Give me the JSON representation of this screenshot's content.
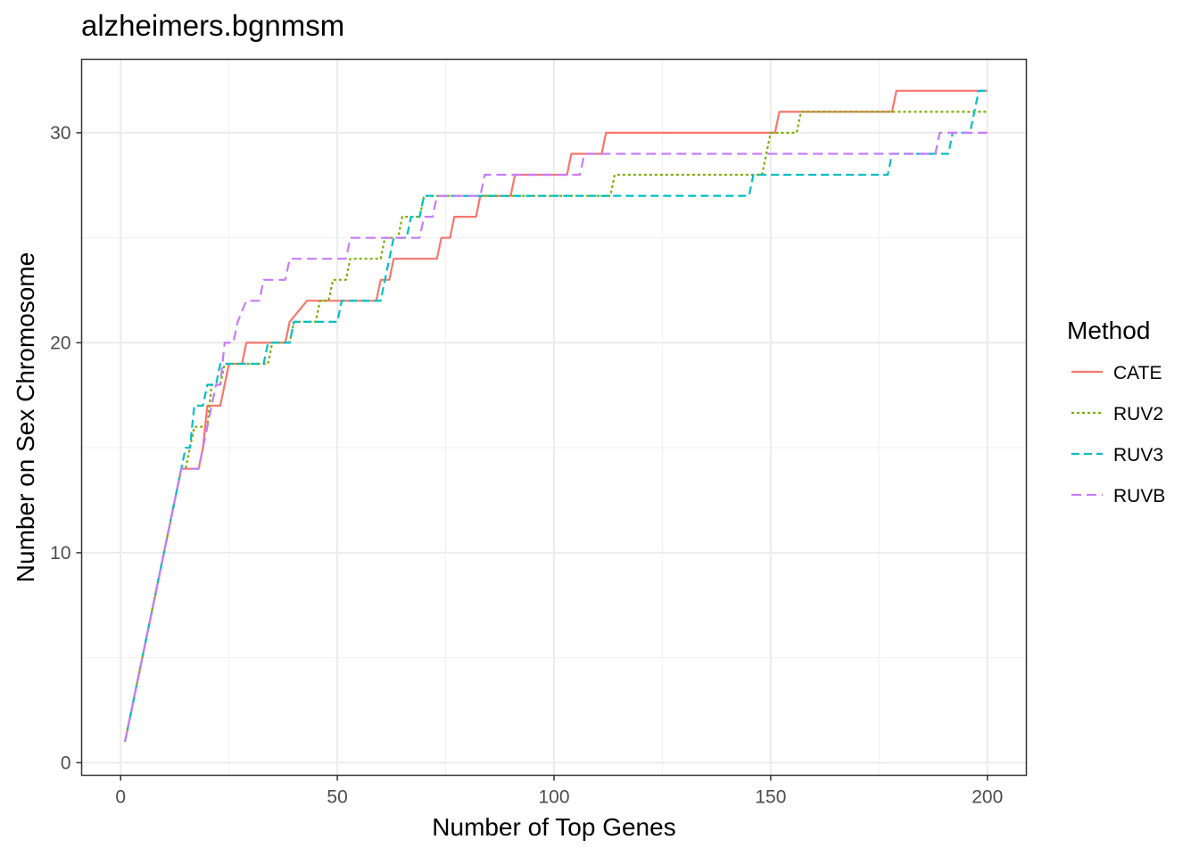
{
  "chart_data": {
    "type": "line",
    "title": "alzheimers.bgnmsm",
    "xlabel": "Number of Top Genes",
    "ylabel": "Number on Sex Chromosome",
    "xlim": [
      -9,
      209
    ],
    "ylim": [
      -0.6,
      33.5
    ],
    "x_ticks": [
      0,
      50,
      100,
      150,
      200
    ],
    "x_tick_labels": [
      "0",
      "50",
      "100",
      "150",
      "200"
    ],
    "y_ticks": [
      0,
      10,
      20,
      30
    ],
    "y_tick_labels": [
      "0",
      "10",
      "20",
      "30"
    ],
    "grid": true,
    "legend": {
      "title": "Method",
      "position": "right"
    },
    "series": [
      {
        "name": "CATE",
        "color": "#F8766D",
        "dash": "solid",
        "steps": [
          [
            1,
            1
          ],
          [
            14,
            14
          ],
          [
            18,
            14
          ],
          [
            19,
            15
          ],
          [
            20,
            17
          ],
          [
            23,
            17
          ],
          [
            24,
            18
          ],
          [
            25,
            19
          ],
          [
            28,
            19
          ],
          [
            29,
            20
          ],
          [
            38,
            20
          ],
          [
            39,
            21
          ],
          [
            43,
            22
          ],
          [
            59,
            22
          ],
          [
            60,
            23
          ],
          [
            62,
            23
          ],
          [
            63,
            24
          ],
          [
            73,
            24
          ],
          [
            74,
            25
          ],
          [
            76,
            25
          ],
          [
            77,
            26
          ],
          [
            82,
            26
          ],
          [
            83,
            27
          ],
          [
            90,
            27
          ],
          [
            91,
            28
          ],
          [
            103,
            28
          ],
          [
            104,
            29
          ],
          [
            111,
            29
          ],
          [
            112,
            30
          ],
          [
            151,
            30
          ],
          [
            152,
            31
          ],
          [
            178,
            31
          ],
          [
            179,
            32
          ],
          [
            200,
            32
          ]
        ]
      },
      {
        "name": "RUV2",
        "color": "#7CAE00",
        "dash": "3,3",
        "steps": [
          [
            1,
            1
          ],
          [
            14,
            14
          ],
          [
            15,
            14
          ],
          [
            16,
            15
          ],
          [
            17,
            16
          ],
          [
            20,
            16
          ],
          [
            21,
            18
          ],
          [
            23,
            18
          ],
          [
            24,
            19
          ],
          [
            34,
            19
          ],
          [
            35,
            20
          ],
          [
            39,
            20
          ],
          [
            40,
            21
          ],
          [
            45,
            21
          ],
          [
            46,
            22
          ],
          [
            48,
            22
          ],
          [
            49,
            23
          ],
          [
            52,
            23
          ],
          [
            53,
            24
          ],
          [
            60,
            24
          ],
          [
            61,
            25
          ],
          [
            64,
            25
          ],
          [
            65,
            26
          ],
          [
            69,
            26
          ],
          [
            70,
            27
          ],
          [
            72,
            27
          ],
          [
            73,
            27
          ],
          [
            113,
            27
          ],
          [
            114,
            28
          ],
          [
            148,
            28
          ],
          [
            149,
            29
          ],
          [
            150,
            30
          ],
          [
            156,
            30
          ],
          [
            157,
            31
          ],
          [
            200,
            31
          ]
        ]
      },
      {
        "name": "RUV3",
        "color": "#00BFC4",
        "dash": "9,5",
        "steps": [
          [
            1,
            1
          ],
          [
            14,
            14
          ],
          [
            15,
            15
          ],
          [
            16,
            15
          ],
          [
            17,
            17
          ],
          [
            19,
            17
          ],
          [
            20,
            18
          ],
          [
            22,
            18
          ],
          [
            23,
            19
          ],
          [
            33,
            19
          ],
          [
            34,
            20
          ],
          [
            39,
            20
          ],
          [
            40,
            21
          ],
          [
            50,
            21
          ],
          [
            51,
            22
          ],
          [
            59,
            22
          ],
          [
            60,
            22
          ],
          [
            61,
            23
          ],
          [
            63,
            25
          ],
          [
            66,
            25
          ],
          [
            67,
            26
          ],
          [
            69,
            26
          ],
          [
            70,
            27
          ],
          [
            145,
            27
          ],
          [
            146,
            28
          ],
          [
            177,
            28
          ],
          [
            178,
            29
          ],
          [
            191,
            29
          ],
          [
            192,
            30
          ],
          [
            196,
            30
          ],
          [
            197,
            31
          ],
          [
            198,
            32
          ],
          [
            200,
            32
          ]
        ]
      },
      {
        "name": "RUVB",
        "color": "#C77CFF",
        "dash": "11,6",
        "steps": [
          [
            1,
            1
          ],
          [
            14,
            14
          ],
          [
            17,
            14
          ],
          [
            18,
            14
          ],
          [
            19,
            15
          ],
          [
            22,
            18
          ],
          [
            23,
            18
          ],
          [
            24,
            20
          ],
          [
            26,
            20
          ],
          [
            27,
            21
          ],
          [
            29,
            22
          ],
          [
            32,
            22
          ],
          [
            33,
            23
          ],
          [
            38,
            23
          ],
          [
            39,
            24
          ],
          [
            52,
            24
          ],
          [
            53,
            25
          ],
          [
            68,
            25
          ],
          [
            69,
            25
          ],
          [
            70,
            26
          ],
          [
            72,
            26
          ],
          [
            73,
            27
          ],
          [
            83,
            27
          ],
          [
            84,
            28
          ],
          [
            106,
            28
          ],
          [
            107,
            29
          ],
          [
            188,
            29
          ],
          [
            189,
            30
          ],
          [
            200,
            30
          ]
        ]
      }
    ]
  }
}
